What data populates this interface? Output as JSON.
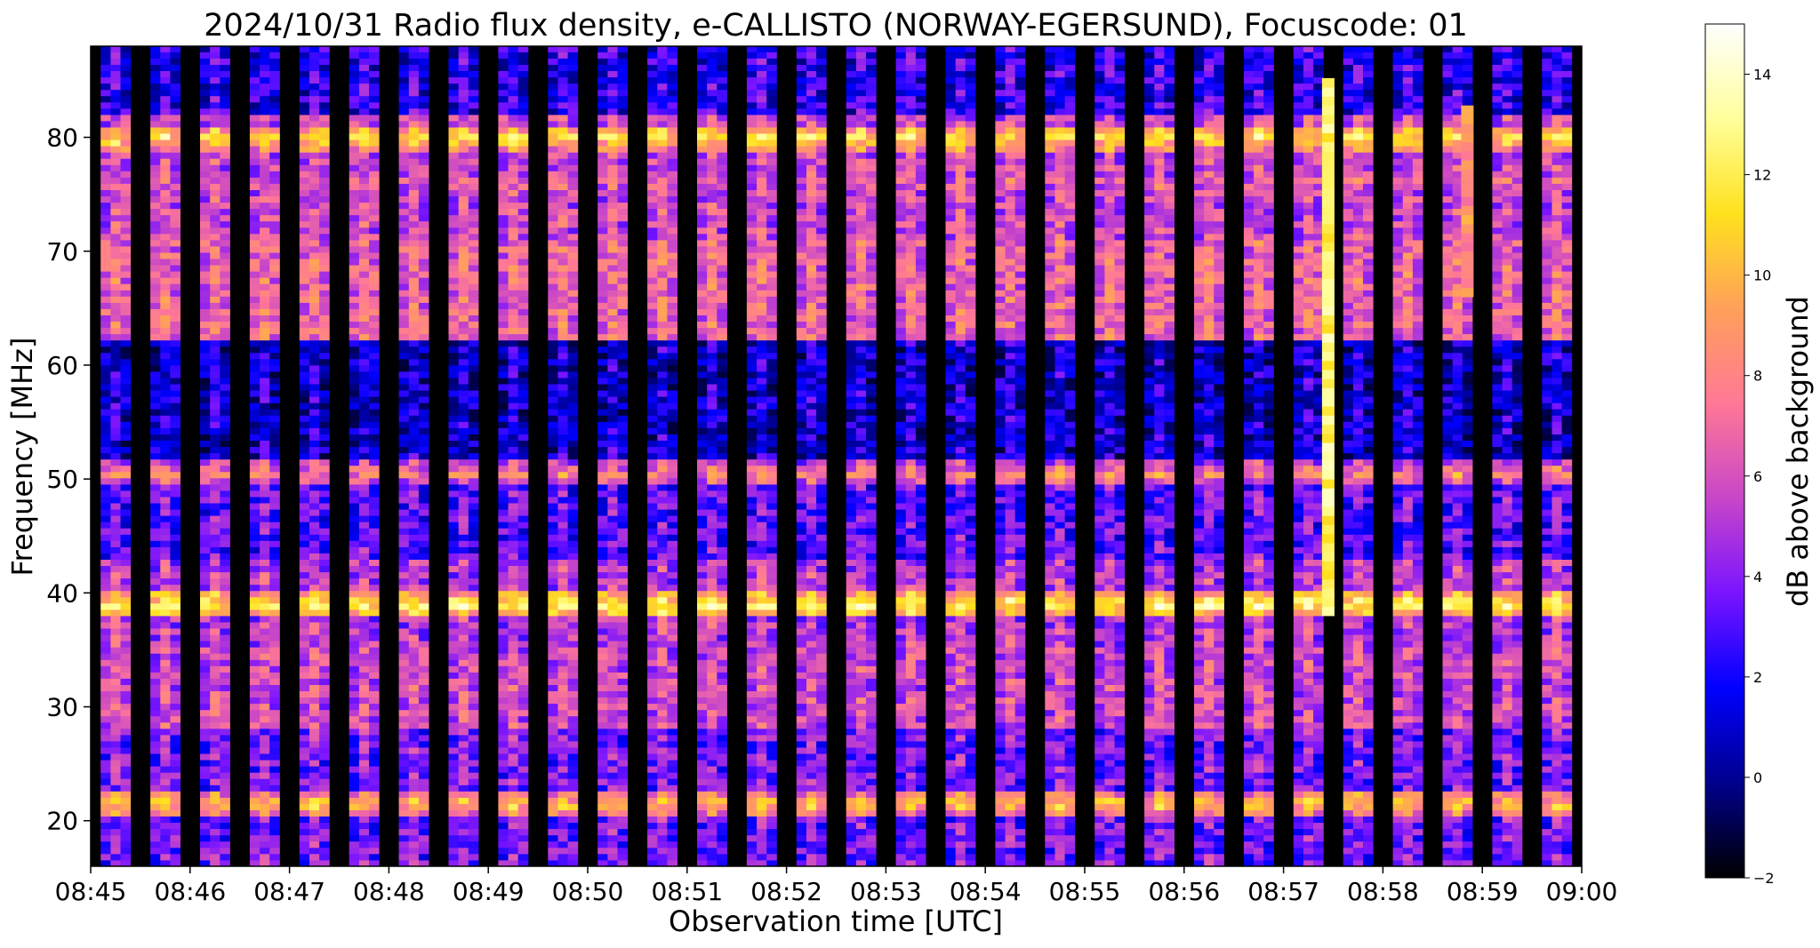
{
  "chart_data": {
    "type": "heatmap",
    "title": "2024/10/31  Radio flux density, e-CALLISTO (NORWAY-EGERSUND), Focuscode: 01",
    "xlabel": "Observation time [UTC]",
    "ylabel": "Frequency [MHz]",
    "colorbar_label": "dB above background",
    "x_ticks": [
      "08:45",
      "08:46",
      "08:47",
      "08:48",
      "08:49",
      "08:50",
      "08:51",
      "08:52",
      "08:53",
      "08:54",
      "08:55",
      "08:56",
      "08:57",
      "08:58",
      "08:59",
      "09:00"
    ],
    "x_range_minutes": [
      0,
      15
    ],
    "y_ticks": [
      20,
      30,
      40,
      50,
      60,
      70,
      80
    ],
    "ylim": [
      16,
      88
    ],
    "colorbar_ticks": [
      -2,
      0,
      2,
      4,
      6,
      8,
      10,
      12,
      14
    ],
    "clim": [
      -2,
      15
    ],
    "colormap": "gnuplot2",
    "colormap_stops": [
      "#000000",
      "#00008c",
      "#0000ff",
      "#7a14ff",
      "#c846c8",
      "#ff7896",
      "#ffa05a",
      "#ffe11e",
      "#ffff9b",
      "#ffffff"
    ],
    "sweep_period_seconds": 30,
    "sweep_duty_fraction": 0.6,
    "bright_bands_mhz": [
      {
        "freq": 80,
        "db": 12
      },
      {
        "freq": 76,
        "db": 8
      },
      {
        "freq": 50.5,
        "db": 9
      },
      {
        "freq": 39,
        "db": 13
      },
      {
        "freq": 28.5,
        "db": 6
      },
      {
        "freq": 21.5,
        "db": 11
      }
    ],
    "burst_events": [
      {
        "time_minutes": 12.45,
        "freq_range_mhz": [
          38,
          85
        ],
        "db": 14
      },
      {
        "time_minutes": 13.85,
        "freq_range_mhz": [
          66,
          82
        ],
        "db": 10
      }
    ]
  }
}
